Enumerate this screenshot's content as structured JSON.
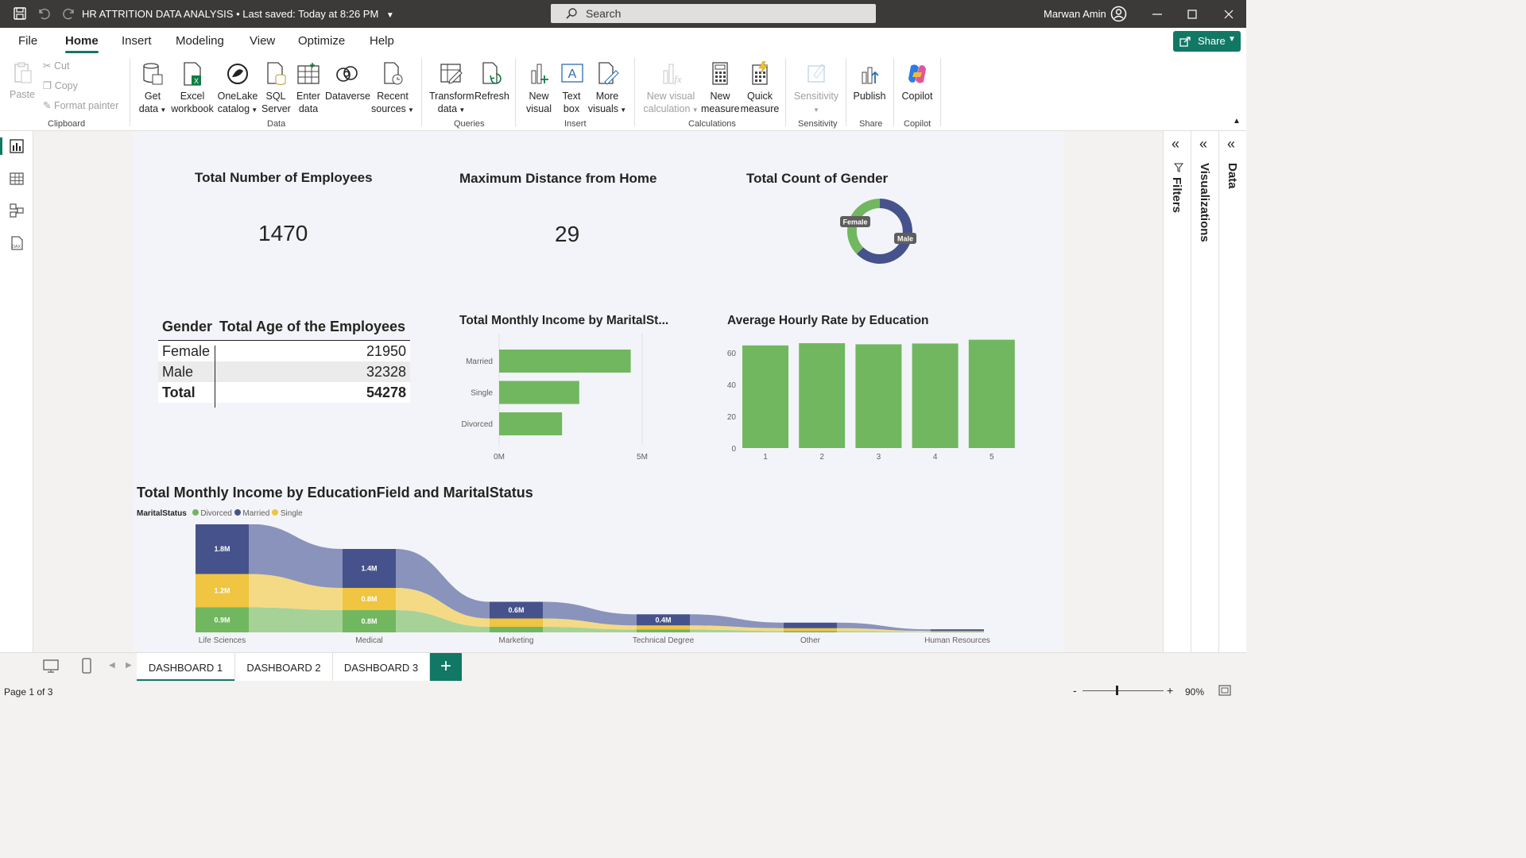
{
  "titlebar": {
    "title": "HR ATTRITION DATA ANALYSIS",
    "saved": "Last saved: Today at 8:26 PM",
    "search_placeholder": "Search",
    "user": "Marwan Amin"
  },
  "ribbon_tabs": [
    "File",
    "Home",
    "Insert",
    "Modeling",
    "View",
    "Optimize",
    "Help"
  ],
  "share_label": "Share",
  "ribbon": {
    "clipboard": {
      "paste": "Paste",
      "cut": "Cut",
      "copy": "Copy",
      "format_painter": "Format painter",
      "group": "Clipboard"
    },
    "data": {
      "get_data": [
        "Get",
        "data"
      ],
      "excel": [
        "Excel",
        "workbook"
      ],
      "onelake": [
        "OneLake",
        "catalog"
      ],
      "sql": [
        "SQL",
        "Server"
      ],
      "enter": [
        "Enter",
        "data"
      ],
      "dataverse": [
        "Dataverse",
        ""
      ],
      "recent": [
        "Recent",
        "sources"
      ],
      "group": "Data"
    },
    "queries": {
      "transform": [
        "Transform",
        "data"
      ],
      "refresh": [
        "Refresh",
        ""
      ],
      "group": "Queries"
    },
    "insert": {
      "new_visual": [
        "New",
        "visual"
      ],
      "text_box": [
        "Text",
        "box"
      ],
      "more_visuals": [
        "More",
        "visuals"
      ],
      "group": "Insert"
    },
    "calculations": {
      "new_visual_calc": [
        "New visual",
        "calculation"
      ],
      "new_measure": [
        "New",
        "measure"
      ],
      "quick_measure": [
        "Quick",
        "measure"
      ],
      "group": "Calculations"
    },
    "sensitivity": {
      "label": "Sensitivity",
      "group": "Sensitivity"
    },
    "share": {
      "publish": "Publish",
      "group": "Share"
    },
    "copilot": {
      "label": "Copilot",
      "group": "Copilot"
    }
  },
  "cards": [
    {
      "title": "Total Number of Employees",
      "value": "1470"
    },
    {
      "title": "Maximum Distance from Home",
      "value": "29"
    }
  ],
  "donut": {
    "title": "Total Count of Gender",
    "labels": [
      "Female",
      "Male"
    ]
  },
  "gender_table": {
    "headers": [
      "Gender",
      "Total Age of the Employees"
    ],
    "rows": [
      [
        "Female",
        "21950"
      ],
      [
        "Male",
        "32328"
      ]
    ],
    "total": [
      "Total",
      "54278"
    ]
  },
  "panes": [
    "Filters",
    "Visualizations",
    "Data"
  ],
  "page_tabs": [
    "DASHBOARD 1",
    "DASHBOARD 2",
    "DASHBOARD 3"
  ],
  "status": {
    "page": "Page 1 of 3",
    "zoom": "90%"
  },
  "colors": {
    "green": "#71b760",
    "navy": "#46528b",
    "yellow": "#efc541",
    "accent": "#117865"
  },
  "chart_data": [
    {
      "type": "bar",
      "orientation": "horizontal",
      "title": "Total Monthly Income by MaritalSt...",
      "categories": [
        "Married",
        "Single",
        "Divorced"
      ],
      "values": [
        4.6,
        2.8,
        2.2
      ],
      "xlim": [
        0,
        5
      ],
      "x_ticks": [
        "0M",
        "5M"
      ]
    },
    {
      "type": "bar",
      "title": "Average Hourly Rate by Education",
      "categories": [
        "1",
        "2",
        "3",
        "4",
        "5"
      ],
      "values": [
        64.6,
        66,
        65.3,
        65.8,
        68.2
      ],
      "ylim": [
        0,
        70
      ],
      "y_ticks": [
        "0",
        "20",
        "40",
        "60"
      ]
    },
    {
      "type": "area",
      "title": "Total Monthly Income by EducationField and MaritalStatus",
      "legend_title": "MaritalStatus",
      "categories": [
        "Life Sciences",
        "Medical",
        "Marketing",
        "Technical Degree",
        "Other",
        "Human Resources"
      ],
      "series": [
        {
          "name": "Divorced",
          "values": [
            0.9,
            0.8,
            0.2,
            0.1,
            0.05,
            0.02
          ],
          "labels": [
            "0.9M",
            "0.8M",
            "",
            "",
            "",
            ""
          ]
        },
        {
          "name": "Single",
          "values": [
            1.2,
            0.8,
            0.3,
            0.15,
            0.1,
            0.03
          ],
          "labels": [
            "1.2M",
            "0.8M",
            "",
            "",
            "",
            ""
          ]
        },
        {
          "name": "Married",
          "values": [
            1.8,
            1.4,
            0.6,
            0.4,
            0.2,
            0.06
          ],
          "labels": [
            "1.8M",
            "1.4M",
            "0.6M",
            "0.4M",
            "",
            ""
          ]
        }
      ]
    }
  ]
}
